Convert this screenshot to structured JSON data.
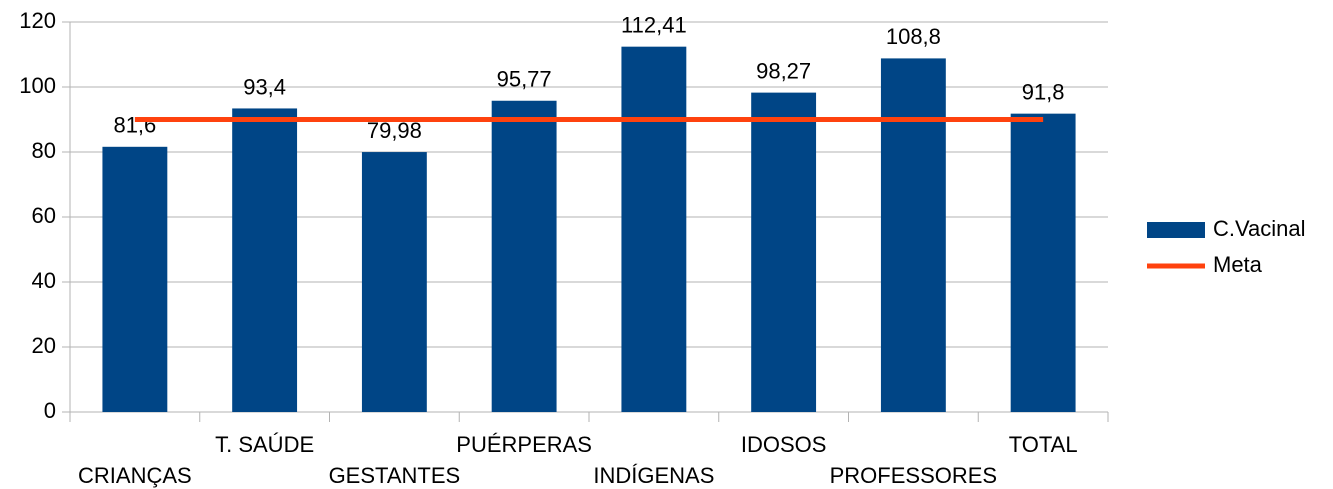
{
  "chart_data": {
    "type": "bar",
    "categories": [
      "CRIANÇAS",
      "T. SAÚDE",
      "GESTANTES",
      "PUÉRPERAS",
      "INDÍGENAS",
      "IDOSOS",
      "PROFESSORES",
      "TOTAL"
    ],
    "series": [
      {
        "name": "C.Vacinal",
        "type": "bar",
        "color": "#004586",
        "values": [
          81.6,
          93.4,
          79.98,
          95.77,
          112.41,
          98.27,
          108.8,
          91.8
        ],
        "value_labels": [
          "81,6",
          "93,4",
          "79,98",
          "95,77",
          "112,41",
          "98,27",
          "108,8",
          "91,8"
        ]
      },
      {
        "name": "Meta",
        "type": "line",
        "color": "#ff420e",
        "values": [
          90,
          90,
          90,
          90,
          90,
          90,
          90,
          90
        ]
      }
    ],
    "ylim": [
      0,
      120
    ],
    "yticks": [
      0,
      20,
      40,
      60,
      80,
      100,
      120
    ],
    "grid": true,
    "legend": "right"
  }
}
